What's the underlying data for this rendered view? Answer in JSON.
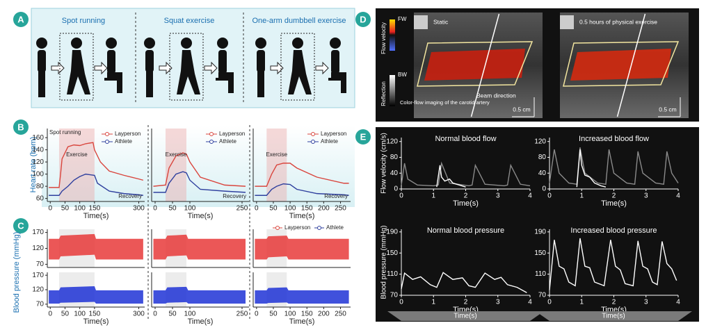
{
  "panels": {
    "A": {
      "label": "A",
      "sections": [
        "Spot running",
        "Squat exercise",
        "One-arm dumbbell exercise"
      ]
    },
    "B": {
      "label": "B",
      "ylabel": "Heart rate (bpm)",
      "charts": [
        {
          "type": "line",
          "xlabel": "Time(s)",
          "xlim": [
            -10,
            320
          ],
          "xticks": [
            0,
            50,
            100,
            150,
            300
          ],
          "ylim": [
            55,
            175
          ],
          "yticks": [
            60,
            80,
            100,
            120,
            140,
            160
          ],
          "exercise": [
            30,
            150
          ],
          "annotations": [
            "Spot running",
            "Exercise",
            "Recovery"
          ],
          "series": [
            {
              "name": "Layperson",
              "color": "#d9453d",
              "x": [
                -5,
                30,
                35,
                40,
                60,
                80,
                100,
                120,
                145,
                150,
                170,
                200,
                250,
                300,
                315
              ],
              "values": [
                78,
                78,
                100,
                125,
                145,
                148,
                147,
                150,
                152,
                140,
                120,
                105,
                98,
                92,
                90
              ]
            },
            {
              "name": "Athlete",
              "color": "#2e3f9e",
              "x": [
                -5,
                30,
                40,
                60,
                80,
                100,
                120,
                150,
                160,
                200,
                250,
                300,
                315
              ],
              "values": [
                65,
                65,
                72,
                80,
                90,
                96,
                100,
                98,
                85,
                72,
                68,
                66,
                65
              ]
            }
          ]
        },
        {
          "type": "line",
          "xlabel": "Time(s)",
          "xlim": [
            -10,
            270
          ],
          "xticks": [
            0,
            50,
            100,
            250
          ],
          "ylim": [
            55,
            175
          ],
          "exercise": [
            30,
            90
          ],
          "annotations": [
            "Exercise",
            "Recovery"
          ],
          "series": [
            {
              "name": "Layperson",
              "color": "#d9453d",
              "x": [
                -5,
                30,
                40,
                60,
                80,
                90,
                100,
                130,
                200,
                260
              ],
              "values": [
                80,
                82,
                110,
                130,
                135,
                133,
                120,
                95,
                82,
                80
              ]
            },
            {
              "name": "Athlete",
              "color": "#2e3f9e",
              "x": [
                -5,
                30,
                40,
                60,
                80,
                90,
                100,
                130,
                200,
                260
              ],
              "values": [
                70,
                70,
                85,
                100,
                104,
                102,
                90,
                75,
                72,
                70
              ]
            }
          ]
        },
        {
          "type": "line",
          "xlabel": "Time(s)",
          "xlim": [
            -10,
            280
          ],
          "xticks": [
            0,
            50,
            100,
            150,
            200,
            250
          ],
          "ylim": [
            55,
            175
          ],
          "exercise": [
            30,
            90
          ],
          "annotations": [
            "Exercise",
            "Recovery"
          ],
          "series": [
            {
              "name": "Layperson",
              "color": "#d9453d",
              "x": [
                -5,
                30,
                45,
                60,
                80,
                100,
                120,
                180,
                260,
                275
              ],
              "values": [
                80,
                80,
                100,
                115,
                118,
                118,
                110,
                95,
                85,
                85
              ]
            },
            {
              "name": "Athlete",
              "color": "#2e3f9e",
              "x": [
                -5,
                30,
                45,
                60,
                80,
                100,
                120,
                180,
                260,
                275
              ],
              "values": [
                65,
                65,
                75,
                80,
                84,
                83,
                75,
                68,
                66,
                65
              ]
            }
          ]
        }
      ]
    },
    "C": {
      "label": "C",
      "ylabel": "Blood pressure (mmHg)",
      "legend": [
        "Layperson",
        "Athlete"
      ],
      "legend_colors": [
        "#d9453d",
        "#2e3f9e"
      ],
      "charts": [
        {
          "type": "band",
          "xlim": [
            -10,
            320
          ],
          "ylim": [
            60,
            180
          ],
          "yticks": [
            70,
            120,
            170
          ],
          "exercise": [
            30,
            150
          ],
          "series": [
            {
              "color": "#e8393a",
              "x": [
                -5,
                30,
                35,
                150,
                155,
                315
              ],
              "values": [
                150,
                150,
                160,
                165,
                150,
                150
              ],
              "lower": [
                85,
                85,
                95,
                100,
                85,
                85
              ]
            }
          ]
        },
        {
          "type": "band",
          "xlim": [
            -10,
            320
          ],
          "ylim": [
            60,
            180
          ],
          "yticks": [
            70,
            120,
            170
          ],
          "xticks": [
            0,
            50,
            100,
            150,
            300
          ],
          "xlabel": "Time(s)",
          "exercise": [
            30,
            150
          ],
          "series": [
            {
              "color": "#1f33d6",
              "x": [
                -5,
                30,
                35,
                150,
                155,
                315
              ],
              "values": [
                118,
                118,
                128,
                132,
                118,
                118
              ],
              "lower": [
                72,
                72,
                75,
                78,
                72,
                72
              ]
            }
          ]
        },
        {
          "type": "band",
          "xlim": [
            -10,
            270
          ],
          "ylim": [
            60,
            180
          ],
          "exercise": [
            30,
            90
          ],
          "series": [
            {
              "color": "#e8393a",
              "x": [
                -5,
                30,
                35,
                90,
                95,
                260
              ],
              "values": [
                150,
                150,
                160,
                163,
                150,
                150
              ],
              "lower": [
                85,
                85,
                95,
                98,
                85,
                85
              ]
            }
          ]
        },
        {
          "type": "band",
          "xlim": [
            -10,
            270
          ],
          "ylim": [
            60,
            180
          ],
          "xticks": [
            0,
            50,
            100,
            250
          ],
          "xlabel": "Time(s)",
          "exercise": [
            30,
            90
          ],
          "series": [
            {
              "color": "#1f33d6",
              "x": [
                -5,
                30,
                35,
                90,
                95,
                260
              ],
              "values": [
                118,
                118,
                128,
                130,
                118,
                118
              ],
              "lower": [
                72,
                72,
                75,
                77,
                72,
                72
              ]
            }
          ]
        },
        {
          "type": "band",
          "xlim": [
            -10,
            280
          ],
          "ylim": [
            60,
            180
          ],
          "exercise": [
            30,
            90
          ],
          "series": [
            {
              "color": "#e8393a",
              "x": [
                -5,
                30,
                35,
                90,
                95,
                275
              ],
              "values": [
                150,
                150,
                158,
                160,
                150,
                150
              ],
              "lower": [
                85,
                85,
                92,
                95,
                85,
                85
              ]
            }
          ]
        },
        {
          "type": "band",
          "xlim": [
            -10,
            280
          ],
          "ylim": [
            60,
            180
          ],
          "xticks": [
            0,
            50,
            100,
            150,
            200,
            250
          ],
          "xlabel": "Time(s)",
          "exercise": [
            30,
            90
          ],
          "series": [
            {
              "color": "#1f33d6",
              "x": [
                -5,
                30,
                35,
                90,
                95,
                275
              ],
              "values": [
                118,
                118,
                126,
                128,
                118,
                118
              ],
              "lower": [
                72,
                72,
                74,
                76,
                72,
                72
              ]
            }
          ]
        }
      ]
    },
    "D": {
      "label": "D",
      "scale_colors": [
        "FW",
        "BW"
      ],
      "bar_labels": [
        "Flow velocity",
        "Reflection"
      ],
      "caption": "Color-flow imaging of the carotid artery",
      "beam": "Beam direction",
      "images": [
        {
          "state": "Static",
          "scale": "0.5 cm"
        },
        {
          "state": "0.5 hours of physical exercise",
          "scale": "0.5 cm"
        }
      ]
    },
    "E": {
      "label": "E",
      "timeline": [
        "Time(s)",
        "Time(s)"
      ],
      "charts": [
        {
          "type": "line",
          "title": "Normal blood flow",
          "ylabel": "Flow velocity (cm/s)",
          "xlabel": "Time(s)",
          "xlim": [
            0,
            4
          ],
          "xticks": [
            0,
            1,
            2,
            3,
            4
          ],
          "ylim": [
            0,
            130
          ],
          "yticks": [
            0,
            40,
            80,
            120
          ],
          "series": [
            {
              "color": "#8a8a8a",
              "x": [
                0,
                0.1,
                0.2,
                0.5,
                1.0,
                1.15,
                1.25,
                1.5,
                2.1,
                2.2,
                2.3,
                2.6,
                3.2,
                3.3,
                3.4,
                3.7,
                4.0
              ],
              "values": [
                10,
                65,
                25,
                10,
                8,
                10,
                65,
                15,
                8,
                10,
                60,
                12,
                8,
                10,
                60,
                12,
                8
              ]
            },
            {
              "color": "#ffffff",
              "x": [
                1.1,
                1.2,
                1.25,
                1.35,
                1.5,
                1.6,
                1.8,
                2.0
              ],
              "values": [
                5,
                60,
                30,
                20,
                25,
                15,
                10,
                5
              ]
            }
          ]
        },
        {
          "type": "line",
          "title": "Increased blood flow",
          "xlabel": "Time(s)",
          "xlim": [
            0,
            4
          ],
          "xticks": [
            0,
            1,
            2,
            3,
            4
          ],
          "ylim": [
            0,
            130
          ],
          "yticks": [
            0,
            40,
            80,
            120
          ],
          "series": [
            {
              "color": "#8a8a8a",
              "x": [
                0,
                0.15,
                0.3,
                0.6,
                0.85,
                0.95,
                1.1,
                1.5,
                1.75,
                1.85,
                2.0,
                2.4,
                2.65,
                2.75,
                2.9,
                3.3,
                3.55,
                3.65,
                3.8,
                4.0
              ],
              "values": [
                15,
                100,
                40,
                15,
                12,
                105,
                40,
                15,
                12,
                100,
                40,
                15,
                12,
                95,
                40,
                15,
                12,
                95,
                40,
                15
              ]
            },
            {
              "color": "#ffffff",
              "x": [
                0.85,
                0.95,
                1.0,
                1.1,
                1.25,
                1.4,
                1.6,
                1.75
              ],
              "values": [
                5,
                100,
                60,
                35,
                30,
                15,
                8,
                5
              ]
            }
          ]
        },
        {
          "type": "line",
          "title": "Normal blood pressure",
          "ylabel": "Blood pressure (mmHg)",
          "xlabel": "Time(s)",
          "xlim": [
            0,
            4
          ],
          "xticks": [
            0,
            1,
            2,
            3,
            4
          ],
          "ylim": [
            70,
            195
          ],
          "yticks": [
            70,
            110,
            150,
            190
          ],
          "series": [
            {
              "color": "#ffffff",
              "x": [
                0,
                0.1,
                0.35,
                0.6,
                0.9,
                1.1,
                1.3,
                1.6,
                1.9,
                2.1,
                2.3,
                2.6,
                2.9,
                3.1,
                3.3,
                3.6,
                3.9
              ],
              "values": [
                82,
                112,
                100,
                105,
                90,
                85,
                113,
                100,
                103,
                88,
                85,
                112,
                100,
                104,
                90,
                85,
                75
              ]
            }
          ]
        },
        {
          "type": "line",
          "title": "Increased blood pressure",
          "xlabel": "Time(s)",
          "xlim": [
            0,
            4
          ],
          "xticks": [
            0,
            1,
            2,
            3,
            4
          ],
          "ylim": [
            70,
            195
          ],
          "yticks": [
            70,
            110,
            150,
            190
          ],
          "series": [
            {
              "color": "#ffffff",
              "x": [
                0,
                0.15,
                0.3,
                0.45,
                0.6,
                0.8,
                0.95,
                1.1,
                1.25,
                1.4,
                1.7,
                1.9,
                2.05,
                2.2,
                2.35,
                2.6,
                2.75,
                2.9,
                3.05,
                3.2,
                3.35,
                3.5,
                3.65,
                3.8,
                3.95
              ],
              "values": [
                80,
                175,
                125,
                120,
                95,
                88,
                178,
                125,
                122,
                95,
                88,
                175,
                125,
                118,
                92,
                88,
                173,
                125,
                120,
                95,
                90,
                172,
                130,
                120,
                98
              ]
            }
          ]
        }
      ]
    }
  }
}
